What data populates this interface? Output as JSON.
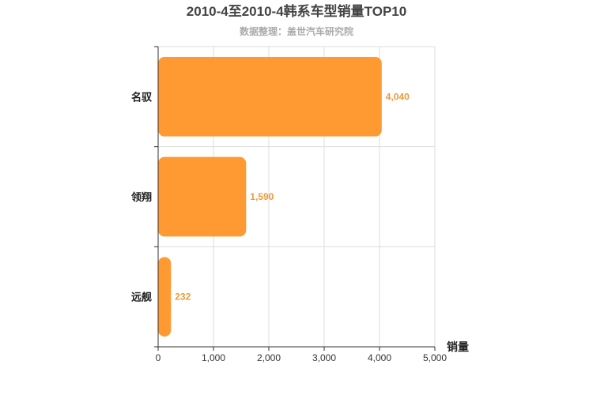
{
  "chart_data": {
    "type": "bar",
    "orientation": "horizontal",
    "title": "2010-4至2010-4韩系车型销量TOP10",
    "subtitle": "数据整理：盖世汽车研究院",
    "categories": [
      "名驭",
      "领翔",
      "远舰"
    ],
    "values": [
      4040,
      1590,
      232
    ],
    "value_labels": [
      "4,040",
      "1,590",
      "232"
    ],
    "xlabel": "销量",
    "ylabel": "",
    "xlim": [
      0,
      5000
    ],
    "x_ticks": [
      0,
      1000,
      2000,
      3000,
      4000,
      5000
    ],
    "x_tick_labels": [
      "0",
      "1,000",
      "2,000",
      "3,000",
      "4,000",
      "5,000"
    ],
    "grid": true,
    "bar_color": "#ff9a33",
    "label_color": "#ee9a3a"
  }
}
